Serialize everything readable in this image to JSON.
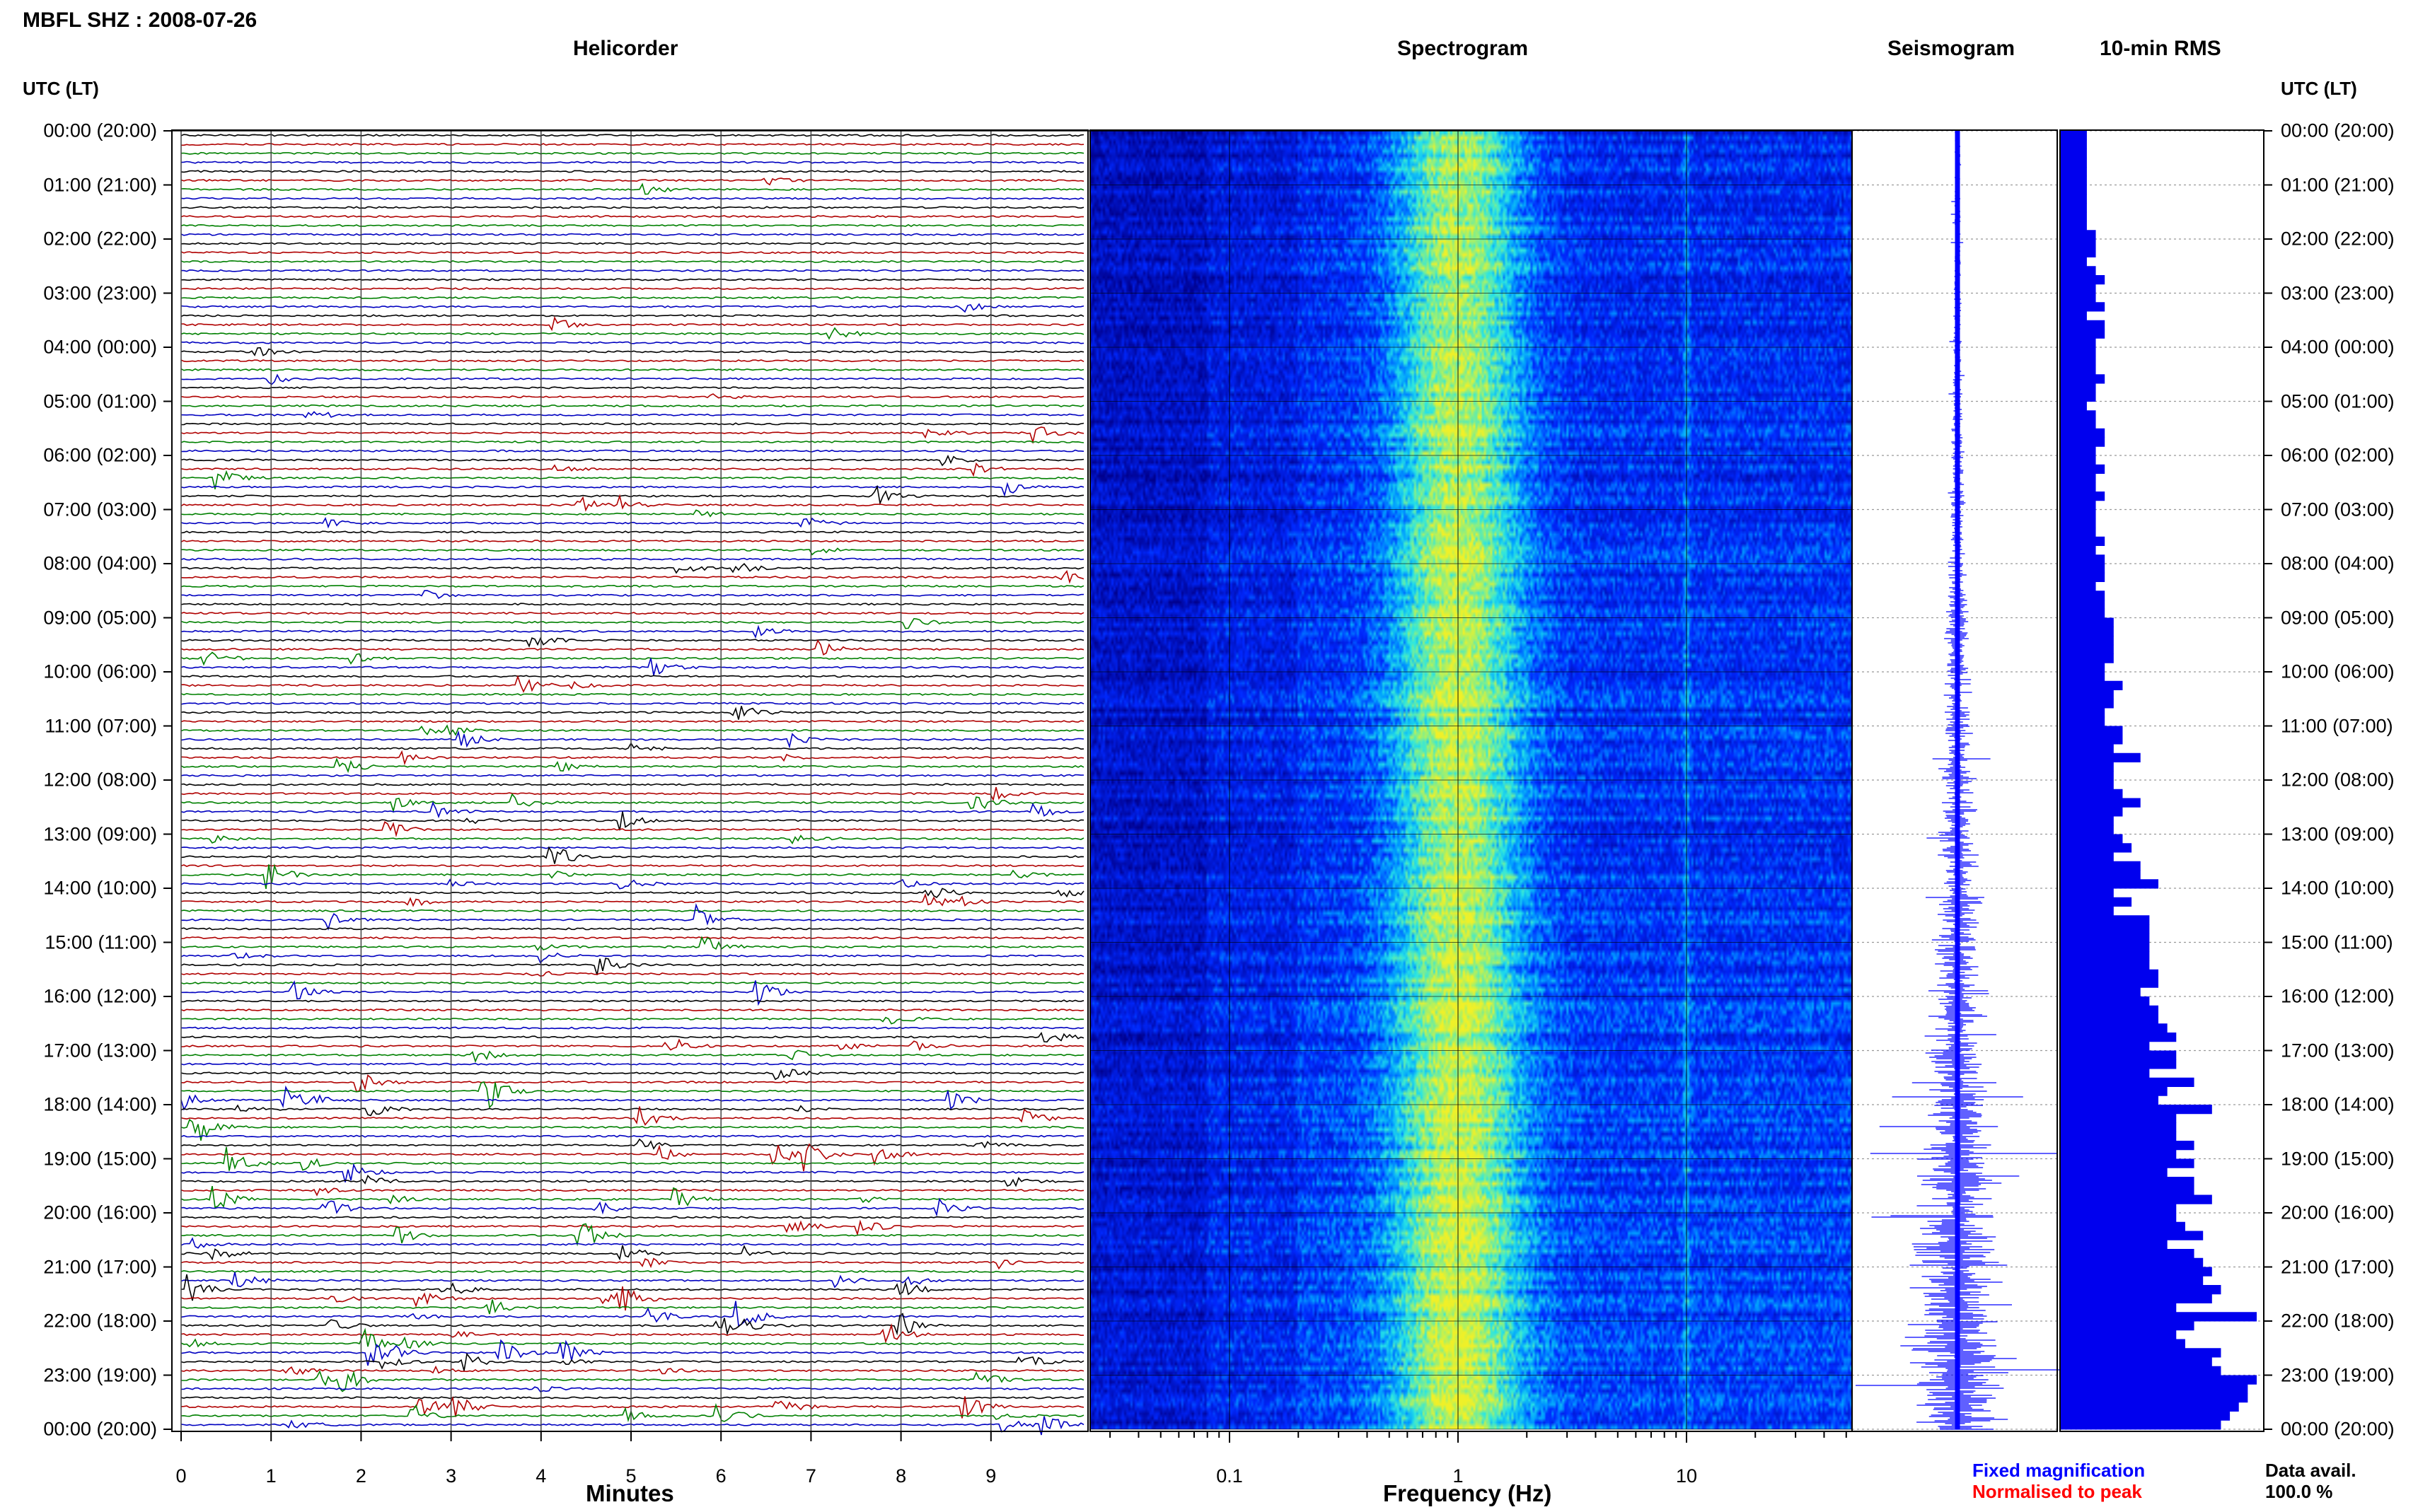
{
  "header": {
    "station": "MBFL SHZ : 2008-07-26",
    "utc_label_left": "UTC (LT)",
    "utc_label_right": "UTC (LT)"
  },
  "panels": {
    "helicorder": "Helicorder",
    "spectrogram": "Spectrogram",
    "seismogram": "Seismogram",
    "rms": "10-min RMS"
  },
  "axes": {
    "minutes_label": "Minutes",
    "minute_ticks": [
      "0",
      "1",
      "2",
      "3",
      "4",
      "5",
      "6",
      "7",
      "8",
      "9"
    ],
    "frequency_label": "Frequency (Hz)",
    "frequency_ticks": [
      "0.1",
      "1",
      "10"
    ]
  },
  "time_labels": [
    "00:00 (20:00)",
    "01:00 (21:00)",
    "02:00 (22:00)",
    "03:00 (23:00)",
    "04:00 (00:00)",
    "05:00 (01:00)",
    "06:00 (02:00)",
    "07:00 (03:00)",
    "08:00 (04:00)",
    "09:00 (05:00)",
    "10:00 (06:00)",
    "11:00 (07:00)",
    "12:00 (08:00)",
    "13:00 (09:00)",
    "14:00 (10:00)",
    "15:00 (11:00)",
    "16:00 (12:00)",
    "17:00 (13:00)",
    "18:00 (14:00)",
    "19:00 (15:00)",
    "20:00 (16:00)",
    "21:00 (17:00)",
    "22:00 (18:00)",
    "23:00 (19:00)",
    "00:00 (20:00)"
  ],
  "legend": {
    "fixed": "Fixed magnification",
    "normalised": "Normalised to peak",
    "fixed_color": "#0000ff",
    "normalised_color": "#ff0000"
  },
  "data_availability": {
    "label": "Data avail.",
    "value": "100.0 %"
  },
  "colors": {
    "trace_cycle": [
      "#000000",
      "#b00000",
      "#008000",
      "#0000c0"
    ],
    "rms_bar": "#0000ee",
    "seismogram": "#0000ff"
  },
  "chart_data": [
    {
      "type": "line",
      "panel": "helicorder",
      "xlabel": "Minutes",
      "xlim": [
        0,
        10
      ],
      "traces_per_hour": 6,
      "hours": 24,
      "note_color_cycle": [
        "black",
        "red",
        "green",
        "blue"
      ]
    },
    {
      "type": "heatmap",
      "panel": "spectrogram",
      "xlabel": "Frequency (Hz)",
      "x_scale": "log",
      "xlim": [
        0.02,
        50
      ],
      "peak_frequency_hz": 1,
      "secondary_band_hz": 10
    },
    {
      "type": "bar",
      "panel": "10-min RMS",
      "orientation": "horizontal",
      "intervals": 144,
      "values": [
        3,
        3,
        3,
        3,
        3,
        3,
        3,
        3,
        3,
        3,
        3,
        4,
        4,
        4,
        3,
        4,
        5,
        4,
        4,
        5,
        3,
        5,
        5,
        4,
        4,
        4,
        4,
        5,
        4,
        4,
        3,
        4,
        4,
        5,
        5,
        4,
        4,
        5,
        4,
        4,
        5,
        4,
        4,
        4,
        4,
        5,
        4,
        5,
        5,
        5,
        4,
        5,
        5,
        5,
        6,
        6,
        6,
        6,
        6,
        5,
        5,
        7,
        6,
        6,
        5,
        5,
        7,
        7,
        6,
        9,
        6,
        6,
        6,
        7,
        9,
        7,
        6,
        6,
        7,
        8,
        6,
        9,
        9,
        11,
        6,
        8,
        6,
        10,
        10,
        10,
        10,
        10,
        10,
        11,
        11,
        9,
        10,
        11,
        11,
        12,
        13,
        10,
        13,
        13,
        10,
        15,
        12,
        11,
        17,
        13,
        13,
        13,
        15,
        13,
        15,
        12,
        15,
        15,
        17,
        13,
        13,
        14,
        16,
        12,
        15,
        16,
        17,
        16,
        18,
        17,
        13,
        22,
        15,
        13,
        14,
        18,
        17,
        18,
        22,
        21,
        21,
        20,
        19,
        18
      ]
    }
  ]
}
